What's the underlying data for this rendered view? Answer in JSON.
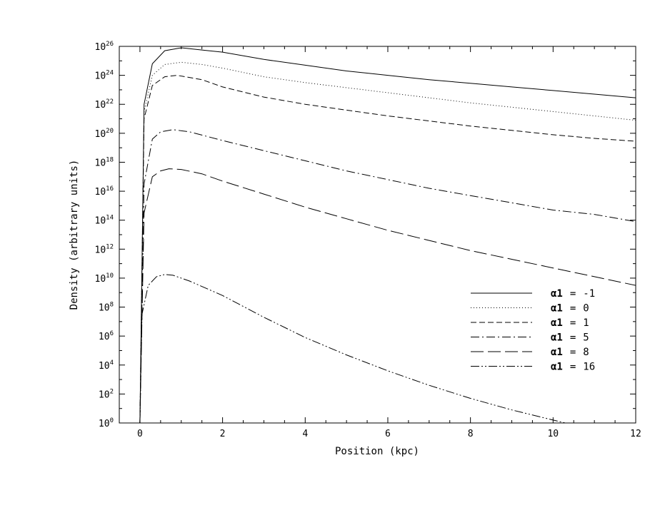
{
  "chart_data": {
    "type": "line",
    "title": "",
    "xlabel": "Position (kpc)",
    "ylabel": "Density (arbitrary units)",
    "xlim": [
      -0.5,
      12
    ],
    "ylim_log10": [
      0,
      26
    ],
    "y_scale": "log",
    "x_ticks": [
      0,
      2,
      4,
      6,
      8,
      10,
      12
    ],
    "x_tick_labels": [
      "0",
      "2",
      "4",
      "6",
      "8",
      "10",
      "12"
    ],
    "y_ticks_log10": [
      0,
      2,
      4,
      6,
      8,
      10,
      12,
      14,
      16,
      18,
      20,
      22,
      24,
      26
    ],
    "y_tick_base": "10",
    "y_tick_exponents": [
      "0",
      "2",
      "4",
      "6",
      "8",
      "10",
      "12",
      "14",
      "16",
      "18",
      "20",
      "22",
      "24",
      "26"
    ],
    "legend_position": "right",
    "legend_symbol": "α1",
    "legend_eq": "=",
    "series": [
      {
        "name": "-1",
        "dash": "",
        "x": [
          0,
          0.1,
          0.3,
          0.6,
          1.0,
          1.5,
          2,
          3,
          4,
          5,
          6,
          7,
          8,
          9,
          10,
          11,
          12
        ],
        "log10_y": [
          0,
          22.0,
          24.8,
          25.7,
          25.9,
          25.75,
          25.6,
          25.1,
          24.7,
          24.3,
          24.0,
          23.7,
          23.45,
          23.2,
          22.95,
          22.7,
          22.45
        ]
      },
      {
        "name": "0",
        "dash": "1,3",
        "x": [
          0,
          0.1,
          0.3,
          0.6,
          1.0,
          1.5,
          2,
          3,
          4,
          5,
          6,
          7,
          8,
          9,
          10,
          11,
          12
        ],
        "log10_y": [
          0,
          21.5,
          24.0,
          24.75,
          24.9,
          24.75,
          24.5,
          23.9,
          23.5,
          23.15,
          22.8,
          22.45,
          22.1,
          21.8,
          21.5,
          21.2,
          20.9
        ]
      },
      {
        "name": "1",
        "dash": "8,4",
        "x": [
          0,
          0.1,
          0.3,
          0.6,
          0.9,
          1.5,
          2,
          3,
          4,
          5,
          6,
          7,
          8,
          9,
          10,
          11,
          12
        ],
        "log10_y": [
          0,
          21.0,
          23.3,
          23.9,
          24.0,
          23.7,
          23.2,
          22.5,
          22.0,
          21.6,
          21.2,
          20.85,
          20.5,
          20.2,
          19.9,
          19.65,
          19.45
        ]
      },
      {
        "name": "5",
        "dash": "12,4,2,4",
        "x": [
          0,
          0.1,
          0.3,
          0.5,
          0.8,
          1.2,
          2,
          3,
          4,
          5,
          6,
          7,
          8,
          9,
          10,
          11,
          12
        ],
        "log10_y": [
          0,
          16.5,
          19.6,
          20.1,
          20.25,
          20.1,
          19.5,
          18.8,
          18.1,
          17.4,
          16.8,
          16.2,
          15.7,
          15.2,
          14.7,
          14.4,
          13.9
        ]
      },
      {
        "name": "8",
        "dash": "18,6",
        "x": [
          0,
          0.1,
          0.3,
          0.5,
          0.7,
          1.0,
          1.5,
          2,
          3,
          4,
          5,
          6,
          7,
          8,
          9,
          10,
          11,
          12
        ],
        "log10_y": [
          0,
          14.5,
          17.0,
          17.4,
          17.55,
          17.5,
          17.2,
          16.7,
          15.8,
          14.9,
          14.1,
          13.3,
          12.6,
          11.9,
          11.3,
          10.7,
          10.1,
          9.5
        ]
      },
      {
        "name": "16",
        "dash": "12,3,2,3,2,3",
        "x": [
          0,
          0.05,
          0.2,
          0.4,
          0.6,
          0.8,
          1.2,
          2,
          3,
          4,
          5,
          6,
          7,
          8,
          9,
          10,
          10.3
        ],
        "log10_y": [
          0,
          7.5,
          9.5,
          10.1,
          10.25,
          10.2,
          9.8,
          8.8,
          7.3,
          5.9,
          4.7,
          3.6,
          2.6,
          1.7,
          0.9,
          0.2,
          0
        ]
      }
    ]
  }
}
